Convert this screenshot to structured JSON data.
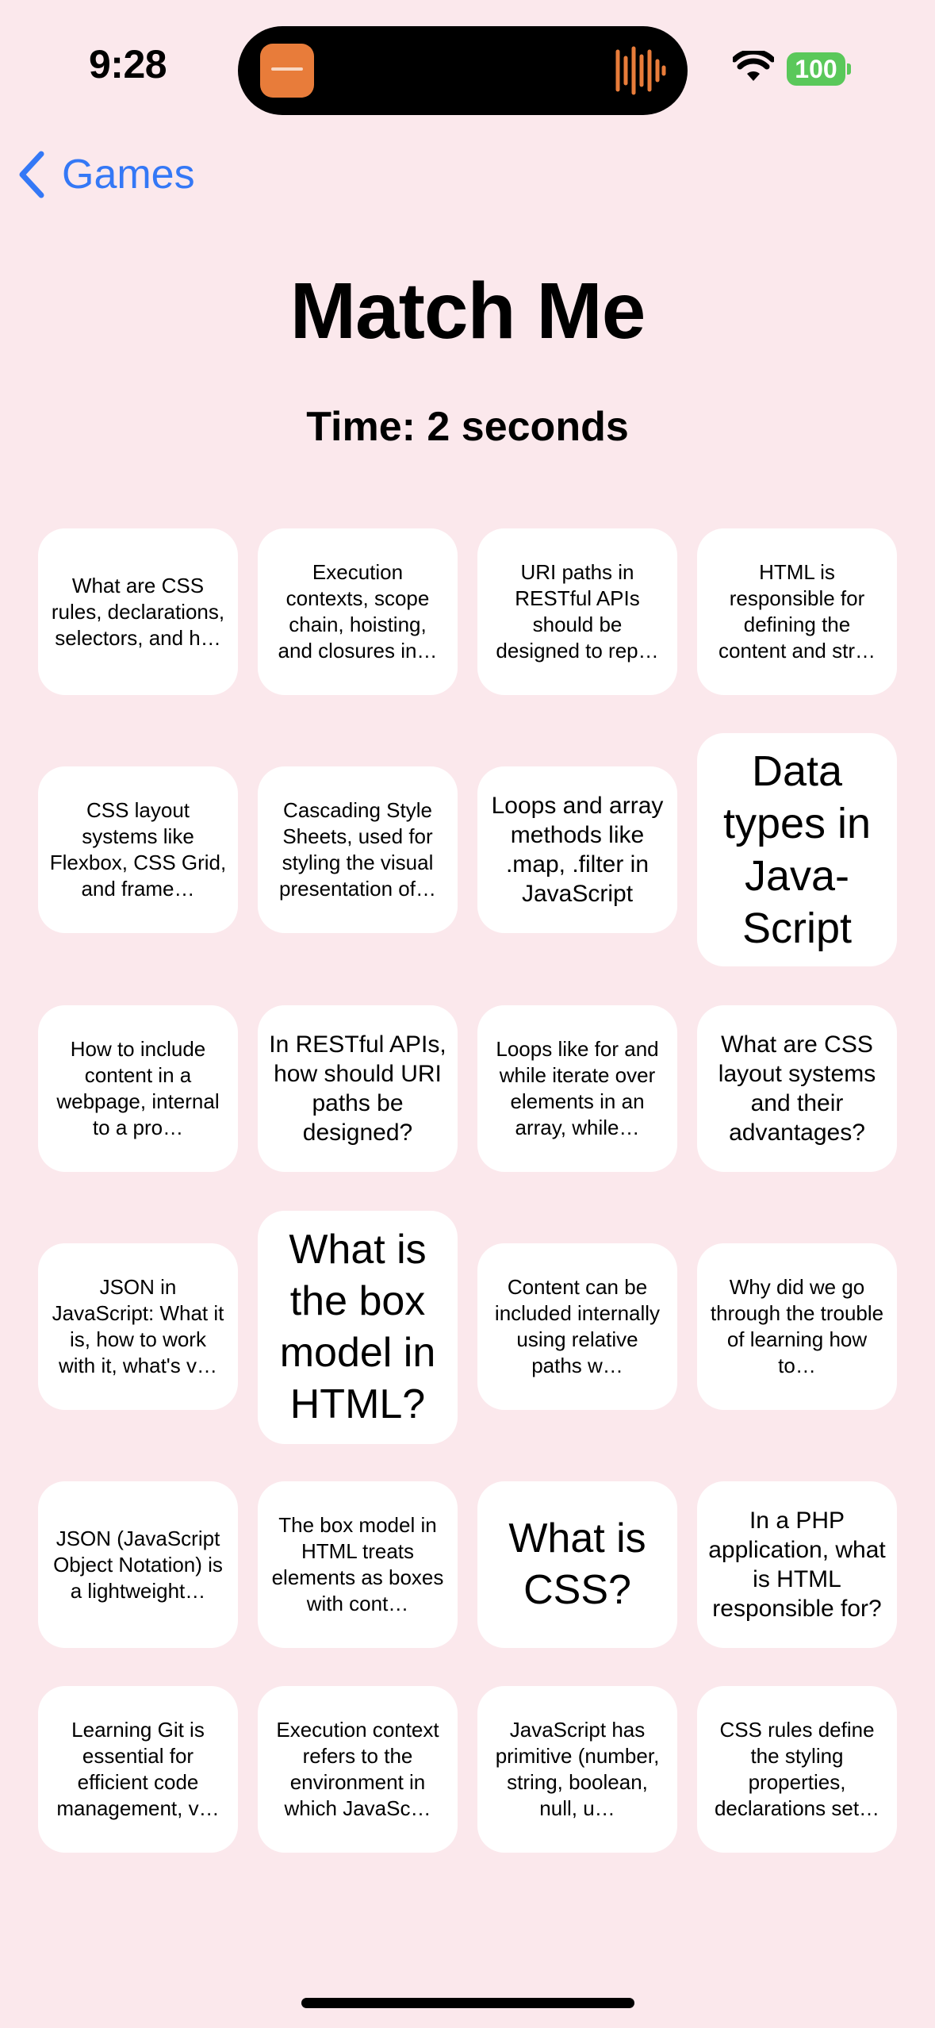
{
  "status_bar": {
    "time": "9:28",
    "battery": "100"
  },
  "nav": {
    "back_label": "Games"
  },
  "header": {
    "title": "Match Me",
    "timer": "Time: 2 seconds"
  },
  "cards": [
    "What are CSS rules, declarations, selectors, and h…",
    "Execution contexts, scope chain, hoisting, and closures in…",
    "URI paths in RESTful APIs should be designed to rep…",
    "HTML is responsible for defining the content and str…",
    "CSS layout systems like Flexbox, CSS Grid, and frame…",
    "Cascading Style Sheets, used for styling the visual presentation of…",
    "Loops and array methods like .map, .filter in JavaScript",
    "Data types in Java-Script",
    "How to include content in a webpage, internal to a pro…",
    "In RESTful APIs, how should URI paths be designed?",
    "Loops like for and while iterate over elements in an array, while…",
    "What are CSS layout systems and their advantages?",
    "JSON in JavaScript: What it is, how to work with it, what's v…",
    "What is the box model in HTML?",
    "Content can be included internally using relative paths w…",
    "Why did we go through the trouble of learning how to…",
    "JSON (JavaScript Object Notation) is a lightweight…",
    "The box model in HTML treats elements as boxes with cont…",
    "What is CSS?",
    "In a PHP application, what is HTML responsible for?",
    "Learning Git is essential for efficient code management, v…",
    "Execution context refers to the environment in which JavaSc…",
    "JavaScript has primitive (number, string, boolean, null, u…",
    "CSS rules define the styling properties, declarations set…"
  ],
  "colors": {
    "background": "#fbe8ec",
    "accent": "#3478f6",
    "battery": "#5ac85a",
    "island_app": "#e87c3a"
  },
  "icons": {
    "back": "chevron-left-icon",
    "wifi": "wifi-icon",
    "audio": "waveform-icon"
  }
}
